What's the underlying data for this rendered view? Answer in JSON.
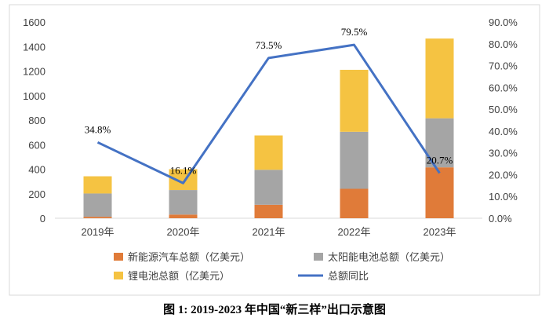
{
  "caption": "图 1: 2019-2023 年中国“新三样”出口示意图",
  "chart_data": {
    "type": "bar",
    "stacked": true,
    "categories": [
      "2019年",
      "2020年",
      "2021年",
      "2022年",
      "2023年"
    ],
    "series": [
      {
        "name": "新能源汽车总额（亿美元）",
        "values": [
          12,
          30,
          110,
          240,
          415
        ],
        "color": "#e07b39"
      },
      {
        "name": "太阳能电池总额（亿美元）",
        "values": [
          190,
          200,
          285,
          465,
          400
        ],
        "color": "#a5a5a5"
      },
      {
        "name": "锂电池总额（亿美元）",
        "values": [
          140,
          170,
          280,
          505,
          650
        ],
        "color": "#f5c342"
      }
    ],
    "line_series": {
      "name": "总额同比",
      "values": [
        34.8,
        16.1,
        73.5,
        79.5,
        20.7
      ],
      "labels": [
        "34.8%",
        "16.1%",
        "73.5%",
        "79.5%",
        "20.7%"
      ],
      "color": "#4472c4",
      "axis": "right"
    },
    "y_left": {
      "min": 0,
      "max": 1600,
      "ticks": [
        "0",
        "200",
        "400",
        "600",
        "800",
        "1000",
        "1200",
        "1400",
        "1600"
      ]
    },
    "y_right": {
      "min": 0,
      "max": 90,
      "ticks": [
        "0.0%",
        "10.0%",
        "20.0%",
        "30.0%",
        "40.0%",
        "50.0%",
        "60.0%",
        "70.0%",
        "80.0%",
        "90.0%"
      ]
    },
    "grid": false,
    "legend_position": "bottom"
  }
}
